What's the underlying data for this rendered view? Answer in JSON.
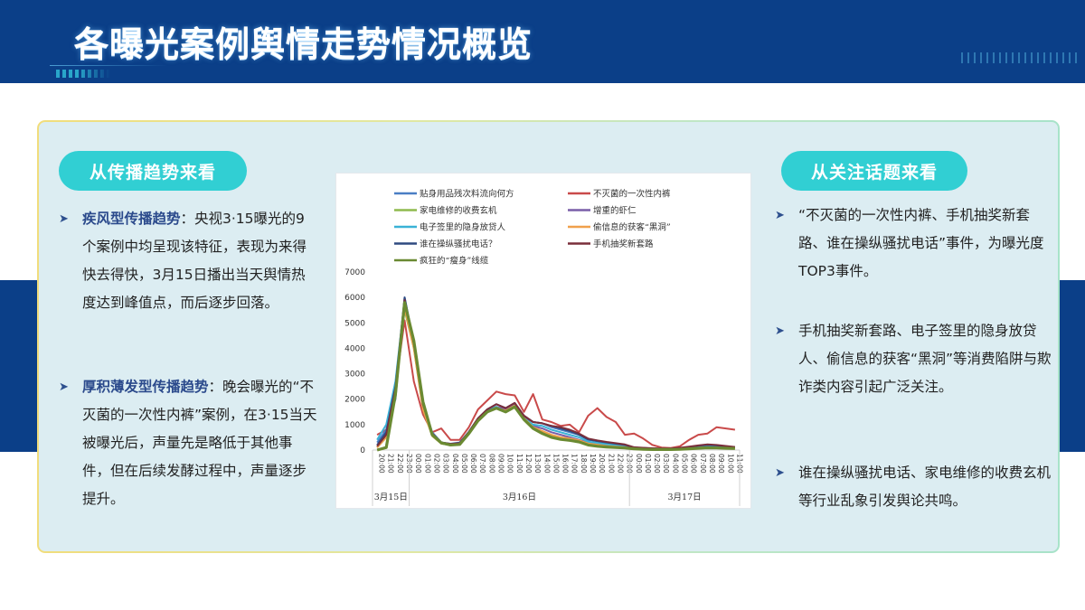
{
  "header": {
    "title": "各曝光案例舆情走势情况概览",
    "bg_color": "#0b3f88"
  },
  "left_panel": {
    "pill_label": "从传播趋势来看",
    "bullets": [
      {
        "lead": "疾风型传播趋势",
        "text": "：央视3·15曝光的9个案例中均呈现该特征，表现为来得快去得快，3月15日播出当天舆情热度达到峰值点，而后逐步回落。"
      },
      {
        "lead": "厚积薄发型传播趋势",
        "text": "：晚会曝光的“不灭菌的一次性内裤”案例，在3·15当天被曝光后，声量先是略低于其他事件，但在后续发酵过程中，声量逐步提升。"
      }
    ]
  },
  "right_panel": {
    "pill_label": "从关注话题来看",
    "bullets": [
      {
        "text": "“不灭菌的一次性内裤、手机抽奖新套路、谁在操纵骚扰电话”事件，为曝光度TOP3事件。"
      },
      {
        "text": "手机抽奖新套路、电子签里的隐身放贷人、偷信息的获客“黑洞”等消费陷阱与欺诈类内容引起广泛关注。"
      },
      {
        "text": "谁在操纵骚扰电话、家电维修的收费玄机等行业乱象引发舆论共鸣。"
      }
    ]
  },
  "icons": {
    "bullet": "arrowhead-icon"
  },
  "chart_data": {
    "type": "line",
    "title": "",
    "xlabel": "",
    "ylabel": "",
    "ylim": [
      0,
      7000
    ],
    "yticks": [
      0,
      1000,
      2000,
      3000,
      4000,
      5000,
      6000,
      7000
    ],
    "grid": false,
    "legend_position": "top",
    "x": [
      "20:00",
      "21:00",
      "22:00",
      "23:00",
      "00:00",
      "01:00",
      "02:00",
      "03:00",
      "04:00",
      "05:00",
      "06:00",
      "07:00",
      "08:00",
      "09:00",
      "10:00",
      "11:00",
      "12:00",
      "13:00",
      "14:00",
      "15:00",
      "16:00",
      "17:00",
      "18:00",
      "19:00",
      "20:00",
      "21:00",
      "22:00",
      "23:00",
      "00:00",
      "01:00",
      "02:00",
      "03:00",
      "04:00",
      "05:00",
      "06:00",
      "07:00",
      "08:00",
      "09:00",
      "10:00",
      "11:00"
    ],
    "day_groups": [
      {
        "label": "3月15日",
        "start": 0,
        "end": 3
      },
      {
        "label": "3月16日",
        "start": 4,
        "end": 27
      },
      {
        "label": "3月17日",
        "start": 28,
        "end": 39
      }
    ],
    "series": [
      {
        "name": "贴身用品残次料流向何方",
        "color": "#4a7ec4",
        "values": [
          300,
          800,
          2000,
          6000,
          4200,
          1800,
          700,
          300,
          250,
          300,
          700,
          1200,
          1550,
          1700,
          1500,
          1800,
          1300,
          1100,
          1050,
          900,
          800,
          700,
          600,
          400,
          350,
          300,
          250,
          200,
          100,
          80,
          60,
          50,
          50,
          80,
          100,
          150,
          180,
          150,
          120,
          100
        ]
      },
      {
        "name": "不灭菌的一次性内裤",
        "color": "#c94a4a",
        "values": [
          600,
          800,
          2500,
          5100,
          2700,
          1400,
          700,
          850,
          400,
          400,
          900,
          1600,
          1950,
          2300,
          2200,
          2150,
          1500,
          2200,
          1200,
          1100,
          950,
          1000,
          700,
          1350,
          1650,
          1300,
          1100,
          600,
          650,
          450,
          200,
          100,
          80,
          150,
          400,
          600,
          650,
          900,
          850,
          800
        ]
      },
      {
        "name": "家电维修的收费玄机",
        "color": "#8fba4e",
        "values": [
          100,
          500,
          2300,
          5500,
          4000,
          1600,
          550,
          250,
          200,
          220,
          650,
          1150,
          1500,
          1650,
          1550,
          1750,
          1250,
          850,
          700,
          550,
          450,
          400,
          350,
          250,
          200,
          150,
          120,
          100,
          60,
          40,
          30,
          30,
          30,
          40,
          60,
          80,
          100,
          90,
          80,
          70
        ]
      },
      {
        "name": "增重的虾仁",
        "color": "#7a5ea8",
        "values": [
          150,
          600,
          2300,
          5700,
          4100,
          1700,
          600,
          280,
          220,
          250,
          680,
          1200,
          1550,
          1700,
          1600,
          1800,
          1300,
          950,
          850,
          700,
          600,
          500,
          400,
          280,
          230,
          180,
          150,
          120,
          70,
          50,
          40,
          40,
          40,
          60,
          80,
          100,
          120,
          110,
          90,
          80
        ]
      },
      {
        "name": "电子签里的隐身放贷人",
        "color": "#3ab2d6",
        "values": [
          400,
          1000,
          2700,
          5900,
          4100,
          1700,
          650,
          300,
          230,
          260,
          700,
          1200,
          1550,
          1700,
          1500,
          1750,
          1250,
          1000,
          950,
          800,
          700,
          600,
          500,
          330,
          280,
          230,
          180,
          150,
          80,
          60,
          50,
          40,
          40,
          60,
          90,
          120,
          140,
          130,
          100,
          80
        ]
      },
      {
        "name": "偷信息的获客“黑洞”",
        "color": "#f0a04b",
        "values": [
          100,
          500,
          2200,
          5600,
          4000,
          1600,
          560,
          260,
          210,
          230,
          660,
          1150,
          1500,
          1650,
          1550,
          1750,
          1250,
          900,
          750,
          600,
          500,
          450,
          380,
          260,
          210,
          160,
          130,
          110,
          60,
          40,
          30,
          30,
          30,
          50,
          70,
          90,
          110,
          100,
          80,
          70
        ]
      },
      {
        "name": "谁在操纵骚扰电话？",
        "color": "#2f4a80",
        "values": [
          200,
          700,
          2500,
          6000,
          4200,
          1800,
          650,
          300,
          240,
          280,
          720,
          1250,
          1600,
          1800,
          1650,
          1850,
          1350,
          1100,
          1050,
          950,
          850,
          750,
          600,
          420,
          350,
          300,
          250,
          200,
          100,
          80,
          60,
          50,
          50,
          80,
          120,
          170,
          200,
          180,
          140,
          110
        ]
      },
      {
        "name": "手机抽奖新套路",
        "color": "#7a2e3a",
        "values": [
          150,
          600,
          2400,
          5900,
          4200,
          1800,
          650,
          300,
          240,
          270,
          700,
          1250,
          1600,
          1800,
          1650,
          1850,
          1350,
          1100,
          1050,
          950,
          900,
          800,
          650,
          450,
          380,
          320,
          270,
          220,
          110,
          90,
          70,
          60,
          60,
          90,
          130,
          180,
          220,
          200,
          160,
          120
        ]
      },
      {
        "name": "疯狂的“瘦身”线缆",
        "color": "#6a8a32",
        "values": [
          0,
          100,
          2200,
          5800,
          4300,
          1900,
          600,
          280,
          200,
          220,
          650,
          1150,
          1500,
          1650,
          1500,
          1700,
          1200,
          850,
          650,
          500,
          420,
          380,
          320,
          200,
          150,
          120,
          100,
          80,
          50,
          30,
          20,
          20,
          20,
          30,
          50,
          70,
          90,
          80,
          70,
          60
        ]
      }
    ]
  }
}
